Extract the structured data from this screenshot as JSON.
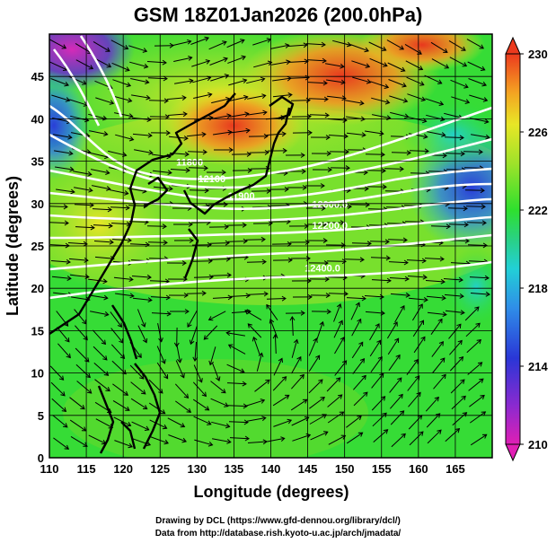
{
  "title": "GSM 18Z01Jan2026 (200.0hPa)",
  "map": {
    "x_axis_label": "Longitude (degrees)",
    "y_axis_label": "Latitude  (degrees)",
    "lon_range": [
      110,
      170
    ],
    "lat_range": [
      0,
      50
    ],
    "lon_ticks": [
      110,
      115,
      120,
      125,
      130,
      135,
      140,
      145,
      150,
      155,
      160,
      165
    ],
    "lat_ticks": [
      0,
      5,
      10,
      15,
      20,
      25,
      30,
      35,
      40,
      45
    ],
    "grid": true
  },
  "colorbar": {
    "range": [
      210,
      230
    ],
    "labels": [
      230,
      226,
      222,
      218,
      214,
      210
    ],
    "colors": [
      "#e01fb4",
      "#3a2bd6",
      "#2f6ee8",
      "#22c8dd",
      "#29d08a",
      "#2ee02e",
      "#8fe02a",
      "#e8e626",
      "#f4a422",
      "#ec4a1e"
    ]
  },
  "contours": [
    {
      "label": "11800",
      "lon": 129,
      "lat": 34.5
    },
    {
      "label": "11900",
      "lon": 136,
      "lat": 30.5
    },
    {
      "label": "12000.0",
      "lon": 148,
      "lat": 29.5
    },
    {
      "label": "12400.0",
      "lon": 147,
      "lat": 22
    },
    {
      "label": "12100",
      "lon": 132,
      "lat": 32.5
    },
    {
      "label": "12200.0",
      "lon": 148,
      "lat": 27
    }
  ],
  "credits": {
    "line1": "Drawing by DCL (https://www.gfd-dennou.org/library/dcl/)",
    "line2": "Data from http://database.rish.kyoto-u.ac.jp/arch/jmadata/"
  }
}
